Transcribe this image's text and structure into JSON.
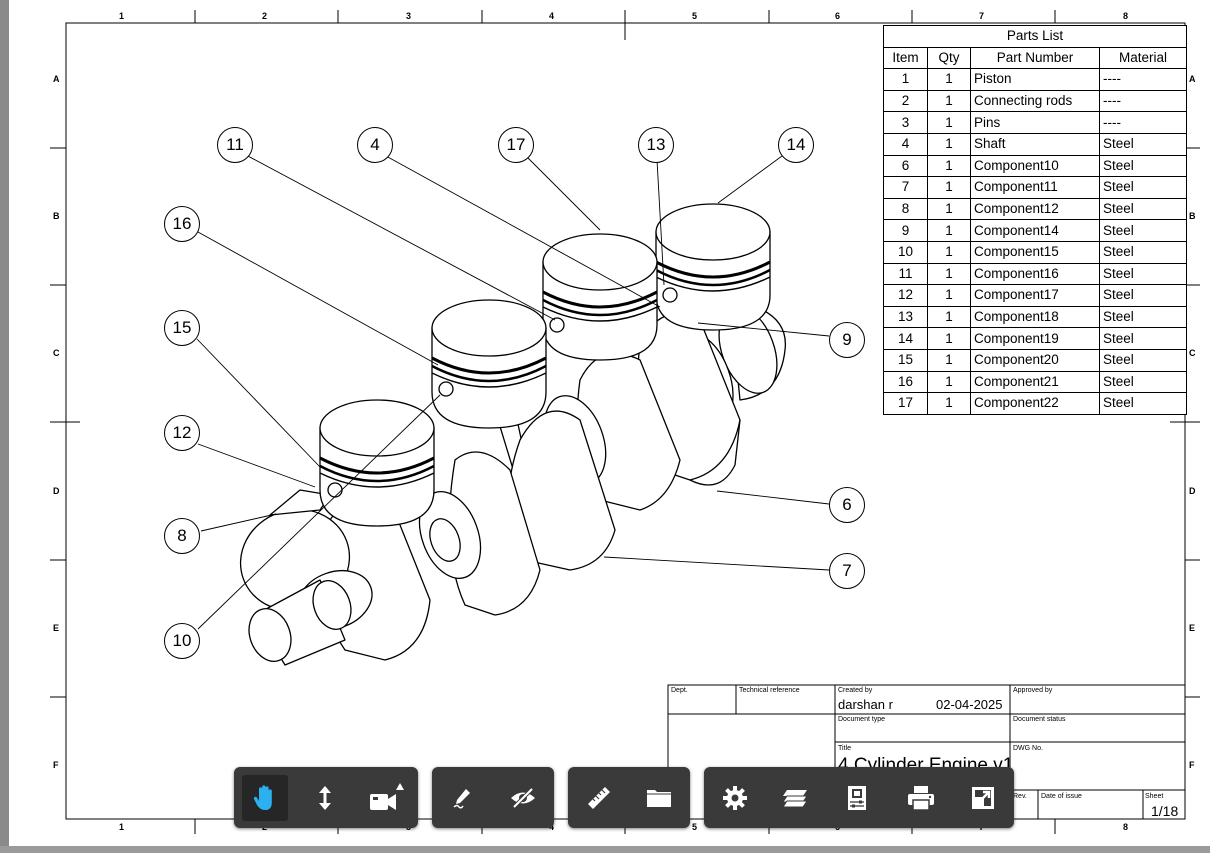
{
  "zone_labels": {
    "columns": [
      "1",
      "2",
      "3",
      "4",
      "5",
      "6",
      "7",
      "8"
    ],
    "rows": [
      "A",
      "B",
      "C",
      "D",
      "E",
      "F"
    ]
  },
  "balloons": [
    "11",
    "4",
    "17",
    "13",
    "14",
    "16",
    "15",
    "12",
    "8",
    "10",
    "9",
    "6",
    "7"
  ],
  "parts_list": {
    "title": "Parts List",
    "headers": [
      "Item",
      "Qty",
      "Part Number",
      "Material"
    ],
    "rows": [
      [
        "1",
        "1",
        "Piston",
        "----"
      ],
      [
        "2",
        "1",
        "Connecting rods",
        "----"
      ],
      [
        "3",
        "1",
        "Pins",
        "----"
      ],
      [
        "4",
        "1",
        "Shaft",
        "Steel"
      ],
      [
        "6",
        "1",
        "Component10",
        "Steel"
      ],
      [
        "7",
        "1",
        "Component11",
        "Steel"
      ],
      [
        "8",
        "1",
        "Component12",
        "Steel"
      ],
      [
        "9",
        "1",
        "Component14",
        "Steel"
      ],
      [
        "10",
        "1",
        "Component15",
        "Steel"
      ],
      [
        "11",
        "1",
        "Component16",
        "Steel"
      ],
      [
        "12",
        "1",
        "Component17",
        "Steel"
      ],
      [
        "13",
        "1",
        "Component18",
        "Steel"
      ],
      [
        "14",
        "1",
        "Component19",
        "Steel"
      ],
      [
        "15",
        "1",
        "Component20",
        "Steel"
      ],
      [
        "16",
        "1",
        "Component21",
        "Steel"
      ],
      [
        "17",
        "1",
        "Component22",
        "Steel"
      ]
    ]
  },
  "title_block": {
    "dept_label": "Dept.",
    "tech_ref_label": "Technical reference",
    "created_by_label": "Created by",
    "created_by": "darshan r",
    "date": "02-04-2025",
    "approved_by_label": "Approved by",
    "document_type_label": "Document type",
    "document_status_label": "Document status",
    "title_label": "Title",
    "title": "4 Cylinder Engine v1",
    "dwg_no_label": "DWG No.",
    "rev_label": "Rev.",
    "date_of_issue_label": "Date of issue",
    "sheet_label": "Sheet",
    "sheet": "1/18"
  },
  "toolbar": {
    "accent_color": "#2bb0f0",
    "groups": [
      [
        "pan-hand-icon",
        "vertical-move-icon",
        "camera-icon"
      ],
      [
        "markup-pencil-icon",
        "hide-eye-icon"
      ],
      [
        "measure-ruler-icon",
        "folder-icon"
      ],
      [
        "settings-gear-icon",
        "layers-icon",
        "properties-icon",
        "print-icon",
        "fullscreen-icon"
      ]
    ]
  }
}
